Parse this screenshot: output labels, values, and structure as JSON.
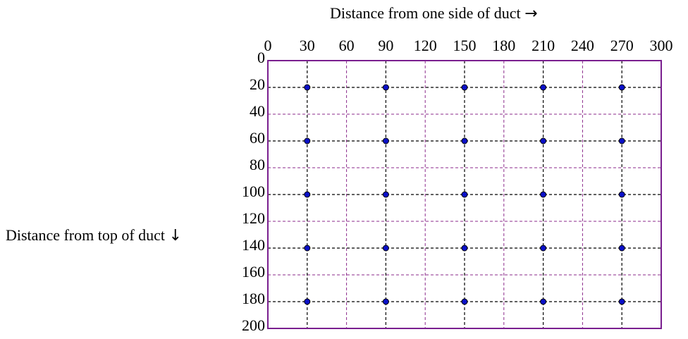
{
  "axes": {
    "x_title": "Distance from one side of duct",
    "x_arrow": "→",
    "y_title": "Distance from top of duct",
    "y_arrow": "↓"
  },
  "colors": {
    "frame": "#7a1f8f",
    "minor_grid": "#8b2a8b",
    "major_grid": "#000000",
    "point_fill": "#0a10c8",
    "point_stroke": "#000000"
  },
  "chart_data": {
    "type": "scatter",
    "x_ticks": [
      0,
      30,
      60,
      90,
      120,
      150,
      180,
      210,
      240,
      270,
      300
    ],
    "y_ticks": [
      0,
      20,
      40,
      60,
      80,
      100,
      120,
      140,
      160,
      180,
      200
    ],
    "xlim": [
      0,
      300
    ],
    "ylim": [
      0,
      200
    ],
    "y_inverted": true,
    "measurement_columns_x": [
      30,
      90,
      150,
      210,
      270
    ],
    "measurement_rows_y": [
      20,
      60,
      100,
      140,
      180
    ],
    "minor_grid_x": [
      60,
      120,
      180,
      240
    ],
    "minor_grid_y": [
      40,
      80,
      120,
      160
    ],
    "grid": true,
    "points": [
      {
        "x": 30,
        "y": 20
      },
      {
        "x": 90,
        "y": 20
      },
      {
        "x": 150,
        "y": 20
      },
      {
        "x": 210,
        "y": 20
      },
      {
        "x": 270,
        "y": 20
      },
      {
        "x": 30,
        "y": 60
      },
      {
        "x": 90,
        "y": 60
      },
      {
        "x": 150,
        "y": 60
      },
      {
        "x": 210,
        "y": 60
      },
      {
        "x": 270,
        "y": 60
      },
      {
        "x": 30,
        "y": 100
      },
      {
        "x": 90,
        "y": 100
      },
      {
        "x": 150,
        "y": 100
      },
      {
        "x": 210,
        "y": 100
      },
      {
        "x": 270,
        "y": 100
      },
      {
        "x": 30,
        "y": 140
      },
      {
        "x": 90,
        "y": 140
      },
      {
        "x": 150,
        "y": 140
      },
      {
        "x": 210,
        "y": 140
      },
      {
        "x": 270,
        "y": 140
      },
      {
        "x": 30,
        "y": 180
      },
      {
        "x": 90,
        "y": 180
      },
      {
        "x": 150,
        "y": 180
      },
      {
        "x": 210,
        "y": 180
      },
      {
        "x": 270,
        "y": 180
      }
    ]
  }
}
